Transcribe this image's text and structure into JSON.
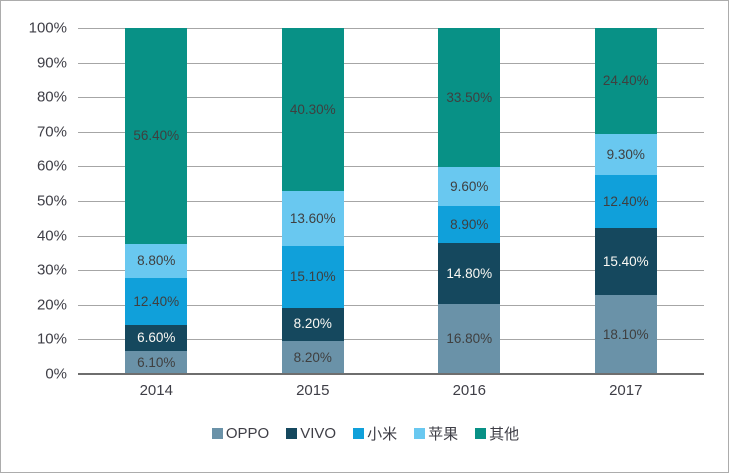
{
  "chart_data": {
    "type": "bar",
    "stacked": true,
    "normalized_to_100": true,
    "title": "",
    "xlabel": "",
    "ylabel": "",
    "ylim": [
      0,
      100
    ],
    "grid": true,
    "legend_position": "bottom",
    "y_ticks": [
      "0%",
      "10%",
      "20%",
      "30%",
      "40%",
      "50%",
      "60%",
      "70%",
      "80%",
      "90%",
      "100%"
    ],
    "categories": [
      "2014",
      "2015",
      "2016",
      "2017"
    ],
    "series": [
      {
        "name": "OPPO",
        "color": "#6A92A8",
        "label_color": "#3F3F3F",
        "values": [
          6.1,
          8.2,
          16.8,
          18.1
        ]
      },
      {
        "name": "VIVO",
        "color": "#15485E",
        "label_color": "#FBF9F4",
        "values": [
          6.6,
          8.2,
          14.8,
          15.4
        ]
      },
      {
        "name": "小米",
        "color": "#10A0DA",
        "label_color": "#3F3F3F",
        "values": [
          12.4,
          15.1,
          8.9,
          12.4
        ]
      },
      {
        "name": "苹果",
        "color": "#69C8F0",
        "label_color": "#3F3F3F",
        "values": [
          8.8,
          13.6,
          9.6,
          9.3
        ]
      },
      {
        "name": "其他",
        "color": "#089186",
        "label_color": "#3F3F3F",
        "values": [
          56.4,
          40.3,
          33.5,
          24.4
        ]
      }
    ],
    "data_labels": {
      "2014": [
        "6.10%",
        "6.60%",
        "12.40%",
        "8.80%",
        "56.40%"
      ],
      "2015": [
        "8.20%",
        "8.20%",
        "15.10%",
        "13.60%",
        "40.30%"
      ],
      "2016": [
        "16.80%",
        "14.80%",
        "8.90%",
        "9.60%",
        "33.50%"
      ],
      "2017": [
        "18.10%",
        "15.40%",
        "12.40%",
        "9.30%",
        "24.40%"
      ]
    },
    "colors": {
      "gridline": "#A6A6A6",
      "axis_line": "#6E6E6E",
      "tick_text": "#3E3E46",
      "frame_border": "#ACACAC",
      "background": "#FFFFFF"
    }
  }
}
